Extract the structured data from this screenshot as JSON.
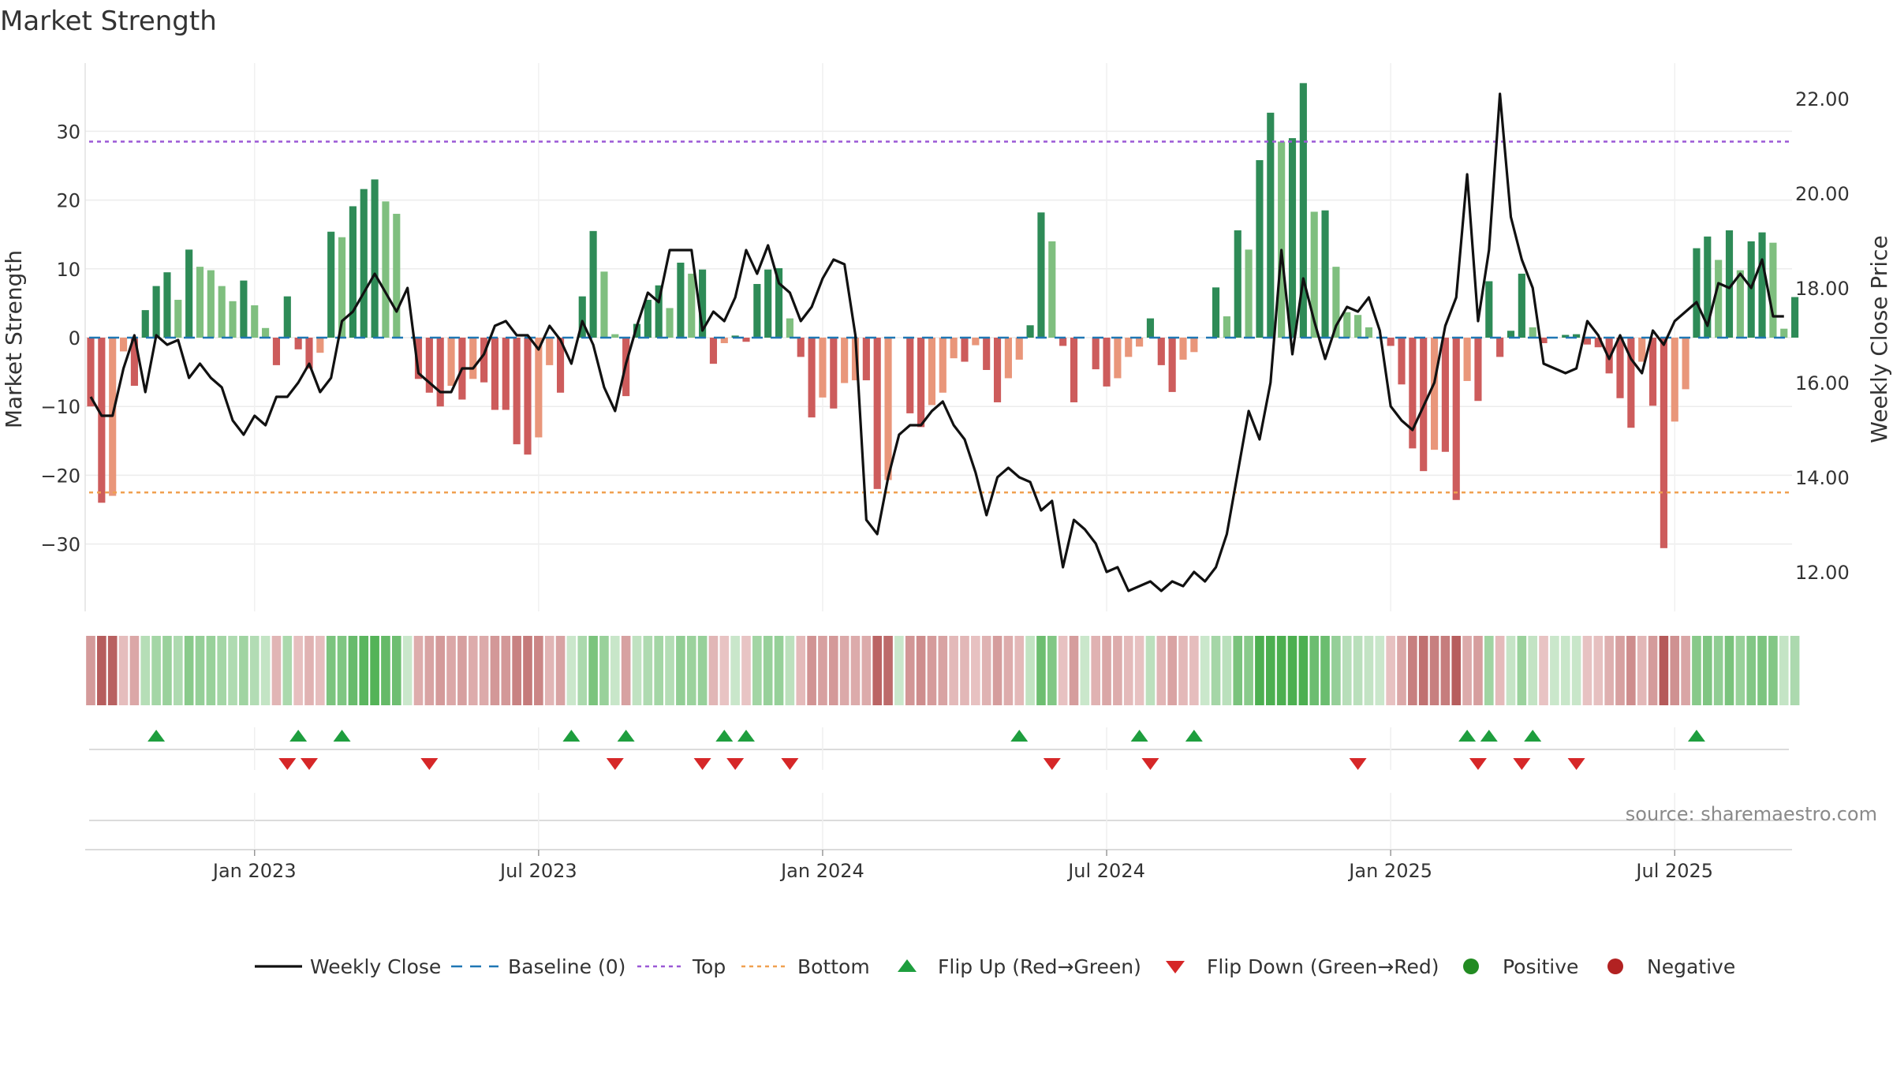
{
  "chart_data": {
    "type": "bar",
    "title": "Market Strength",
    "ylabel_left": "Market Strength",
    "ylabel_right": "Weekly Close Price",
    "source": "source: sharemaestro.com",
    "left_axis": {
      "ylim": [
        -40,
        40
      ],
      "ticks": [
        30,
        20,
        10,
        0,
        -10,
        -20,
        -30
      ],
      "tick_labels": [
        "30",
        "20",
        "10",
        "0",
        "−10",
        "−20",
        "−30"
      ]
    },
    "right_axis": {
      "ylim": [
        11.6,
        23.2
      ],
      "ticks": [
        22,
        20,
        18,
        16,
        14,
        12
      ],
      "tick_labels": [
        "22.00",
        "20.00",
        "18.00",
        "16.00",
        "14.00",
        "12.00"
      ]
    },
    "x_ticks": [
      {
        "label": "Jan 2023",
        "week": 15
      },
      {
        "label": "Jul 2023",
        "week": 41
      },
      {
        "label": "Jan 2024",
        "week": 67
      },
      {
        "label": "Jul 2024",
        "week": 93
      },
      {
        "label": "Jan 2025",
        "week": 119
      },
      {
        "label": "Jul 2025",
        "week": 145
      }
    ],
    "top_line": 28.5,
    "bottom_line": -22.5,
    "baseline": 0,
    "strength": [
      -10,
      -24,
      -23,
      -2,
      -7,
      4,
      7.5,
      9.5,
      5.5,
      12.8,
      10.3,
      9.8,
      7.5,
      5.3,
      8.3,
      4.7,
      1.4,
      -4,
      6,
      -1.7,
      -4.5,
      -2.2,
      15.4,
      14.6,
      19.1,
      21.6,
      23,
      19.8,
      18,
      0,
      -6,
      -8,
      -10,
      -7,
      -9,
      -6,
      -6.5,
      -10.5,
      -10.5,
      -15.5,
      -17,
      -14.5,
      -4,
      -8,
      0,
      6,
      15.5,
      9.6,
      0.5,
      -8.5,
      2,
      5.5,
      7.6,
      4.3,
      10.9,
      9.3,
      9.9,
      -3.8,
      -0.8,
      0.3,
      -0.6,
      7.8,
      9.9,
      10.1,
      2.8,
      -2.8,
      -11.6,
      -8.7,
      -10.3,
      -6.6,
      -6.2,
      -6.2,
      -22,
      -20.7,
      0,
      -11,
      -13,
      -9.8,
      -8,
      -3,
      -3.5,
      -1.1,
      -4.7,
      -9.4,
      -5.9,
      -3.2,
      1.8,
      18.2,
      14,
      -1.2,
      -9.4,
      0,
      -4.6,
      -7.1,
      -5.9,
      -2.8,
      -1.3,
      2.8,
      -4,
      -7.9,
      -3.2,
      -2.1,
      0,
      7.3,
      3.1,
      15.6,
      12.8,
      25.8,
      32.7,
      28.5,
      29,
      37,
      18.3,
      18.5,
      10.3,
      3.7,
      3.3,
      1.5,
      0,
      -1.2,
      -6.8,
      -16.1,
      -19.4,
      -16.3,
      -16.6,
      -23.6,
      -6.3,
      -9.2,
      8.2,
      -2.8,
      1,
      9.3,
      1.5,
      -0.8,
      0,
      0.4,
      0.5,
      -1,
      -1.4,
      -5.2,
      -8.8,
      -13.1,
      -3.5,
      -9.9,
      -30.6,
      -12.2,
      -7.5,
      13,
      14.7,
      11.3,
      15.6,
      9.8,
      14,
      15.3,
      13.8,
      1.3,
      5.9
    ],
    "close": [
      15.7,
      15.3,
      15.3,
      16.3,
      17,
      15.8,
      17,
      16.8,
      16.9,
      16.1,
      16.4,
      16.1,
      15.9,
      15.2,
      14.9,
      15.3,
      15.1,
      15.7,
      15.7,
      16,
      16.4,
      15.8,
      16.1,
      17.3,
      17.5,
      17.9,
      18.3,
      17.9,
      17.5,
      18,
      16.2,
      16,
      15.8,
      15.8,
      16.3,
      16.3,
      16.6,
      17.2,
      17.3,
      17,
      17,
      16.7,
      17.2,
      16.9,
      16.4,
      17.3,
      16.8,
      15.9,
      15.4,
      16.4,
      17.2,
      17.9,
      17.7,
      18.8,
      18.8,
      18.8,
      17.1,
      17.5,
      17.3,
      17.8,
      18.8,
      18.3,
      18.9,
      18.1,
      17.9,
      17.3,
      17.6,
      18.2,
      18.6,
      18.5,
      17,
      13.1,
      12.8,
      14,
      14.9,
      15.1,
      15.1,
      15.4,
      15.6,
      15.1,
      14.8,
      14.1,
      13.2,
      14,
      14.2,
      14,
      13.9,
      13.3,
      13.5,
      12.1,
      13.1,
      12.9,
      12.6,
      12,
      12.1,
      11.6,
      11.7,
      11.8,
      11.6,
      11.8,
      11.7,
      12,
      11.8,
      12.1,
      12.8,
      14.1,
      15.4,
      14.8,
      16,
      18.8,
      16.6,
      18.2,
      17.3,
      16.5,
      17.2,
      17.6,
      17.5,
      17.8,
      17.1,
      15.5,
      15.2,
      15,
      15.5,
      16,
      17.2,
      17.8,
      20.4,
      17.3,
      18.8,
      22.1,
      19.5,
      18.6,
      18,
      16.4,
      16.3,
      16.2,
      16.3,
      17.3,
      17,
      16.5,
      17,
      16.5,
      16.2,
      17.1,
      16.8,
      17.3,
      17.5,
      17.7,
      17.2,
      18.1,
      18,
      18.3,
      18,
      18.6,
      17.4,
      17.4
    ],
    "flip_up_weeks": [
      6,
      19,
      23,
      44,
      49,
      58,
      60,
      85,
      96,
      101,
      126,
      128,
      132,
      147
    ],
    "flip_down_weeks": [
      18,
      20,
      31,
      48,
      56,
      59,
      64,
      88,
      97,
      116,
      127,
      131,
      136
    ],
    "legend": {
      "weekly_close": "Weekly Close",
      "baseline": "Baseline (0)",
      "top": "Top",
      "bottom": "Bottom",
      "flip_up": "Flip Up (Red→Green)",
      "flip_down": "Flip Down (Green→Red)",
      "positive": "Positive",
      "negative": "Negative"
    },
    "colors": {
      "pos_dark": "#2e8b57",
      "pos_light": "#7fbf7f",
      "neg_dark": "#cd5c5c",
      "neg_light": "#e9967a",
      "close": "#111111",
      "baseline": "#1f77b4",
      "top": "#9b59d6",
      "bottom": "#f0a050",
      "flip_up": "#1e9e3e",
      "flip_down": "#d62728",
      "positive": "#228b22",
      "negative": "#b22222"
    }
  }
}
